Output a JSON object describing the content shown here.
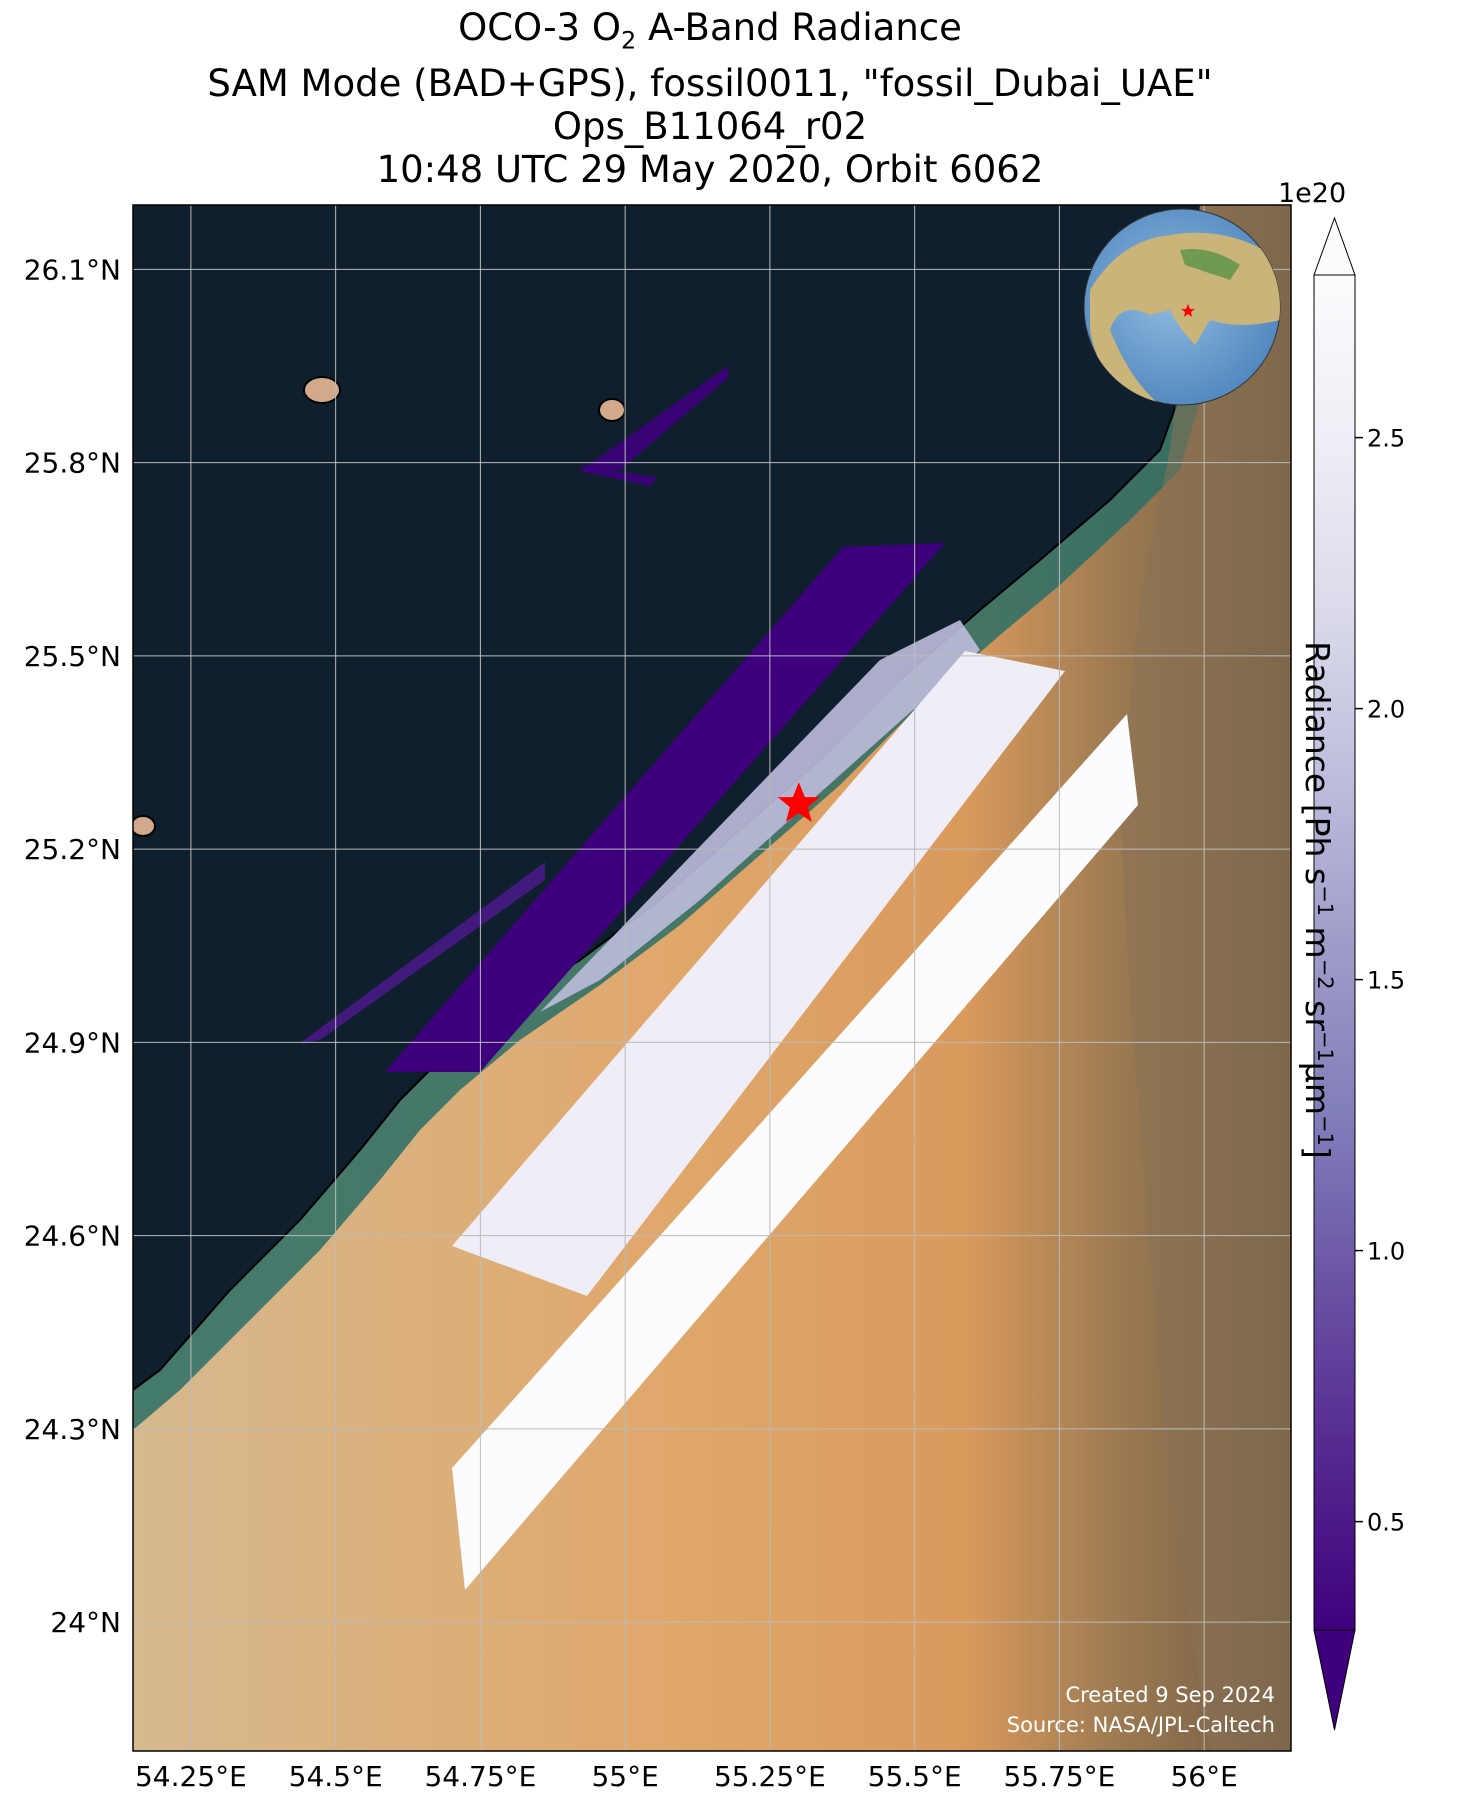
{
  "title": {
    "line1_pre": "OCO-3 O",
    "line1_sub": "2",
    "line1_post": " A-Band Radiance",
    "line2": "SAM Mode (BAD+GPS), fossil0011, \"fossil_Dubai_UAE\"",
    "line3": "Ops_B11064_r02",
    "line4": "10:48 UTC 29 May 2020, Orbit 6062"
  },
  "map": {
    "lon_range": [
      54.15,
      56.15
    ],
    "lat_range": [
      23.8,
      26.2
    ],
    "lon_ticks": [
      "54.25°E",
      "54.5°E",
      "54.75°E",
      "55°E",
      "55.25°E",
      "55.5°E",
      "55.75°E",
      "56°E"
    ],
    "lat_ticks": [
      "26.1°N",
      "25.8°N",
      "25.5°N",
      "25.2°N",
      "24.9°N",
      "24.6°N",
      "24.3°N",
      "24°N"
    ],
    "target_marker": {
      "lon": 55.3,
      "lat": 25.27,
      "color": "#ff0000"
    },
    "inset_globe": "globe-inset",
    "credit_line1": "Created 9 Sep 2024",
    "credit_line2": "Source: NASA/JPL-Caltech",
    "colors": {
      "sea": "#0f1f2e",
      "desert": "#dcaa74",
      "mountains": "#8b7355",
      "coast_shallow": "#2a6e66"
    }
  },
  "colorbar": {
    "exponent": "1e20",
    "ticks": [
      "2.5",
      "2.0",
      "1.5",
      "1.0",
      "0.5"
    ],
    "tick_values": [
      2.5,
      2.0,
      1.5,
      1.0,
      0.5
    ],
    "min": 0.3,
    "max": 2.8,
    "extend": "both",
    "colors": [
      "#3f007d",
      "#54278f",
      "#6a51a3",
      "#807dba",
      "#9e9ac8",
      "#bcbddc",
      "#dadaeb",
      "#efedf5",
      "#fcfbfd"
    ],
    "label_pre": "Radiance [Ph s",
    "sup1": "−1",
    "mid1": " m",
    "sup2": "−2",
    "mid2": " sr",
    "sup3": "−1",
    "mid3": "μm",
    "sup4": "−1",
    "label_post": "]"
  }
}
